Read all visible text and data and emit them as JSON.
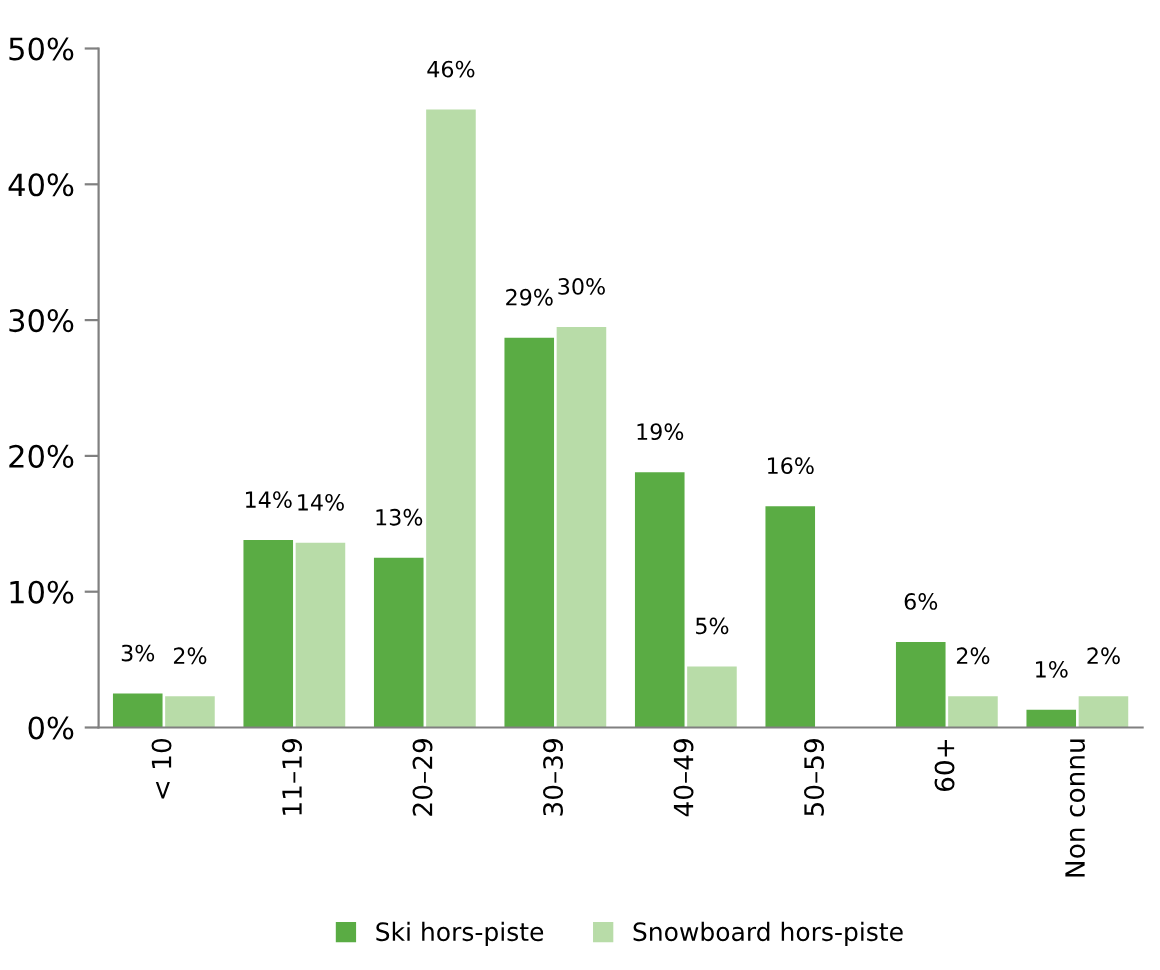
{
  "chart_data": {
    "type": "bar",
    "categories": [
      "< 10",
      "11–19",
      "20–29",
      "30–39",
      "40–49",
      "50–59",
      "60+",
      "Non connu"
    ],
    "series": [
      {
        "name": "Ski hors-piste",
        "color": "#5aac44",
        "values": [
          2.5,
          13.8,
          12.5,
          28.7,
          18.8,
          16.3,
          6.3,
          1.3
        ],
        "value_labels": [
          "3%",
          "14%",
          "13%",
          "29%",
          "19%",
          "16%",
          "6%",
          "1%"
        ]
      },
      {
        "name": "Snowboard hors-piste",
        "color": "#b8dca8",
        "values": [
          2.3,
          13.6,
          45.5,
          29.5,
          4.5,
          null,
          2.3,
          2.3
        ],
        "value_labels": [
          "2%",
          "14%",
          "46%",
          "30%",
          "5%",
          null,
          "2%",
          "2%"
        ]
      }
    ],
    "ylim": [
      0,
      50
    ],
    "yticks": [
      {
        "value": 0,
        "label": "0%"
      },
      {
        "value": 10,
        "label": "10%"
      },
      {
        "value": 20,
        "label": "20%"
      },
      {
        "value": 30,
        "label": "30%"
      },
      {
        "value": 40,
        "label": "40%"
      },
      {
        "value": 50,
        "label": "50%"
      }
    ],
    "grid": false,
    "legend": "bottom"
  }
}
